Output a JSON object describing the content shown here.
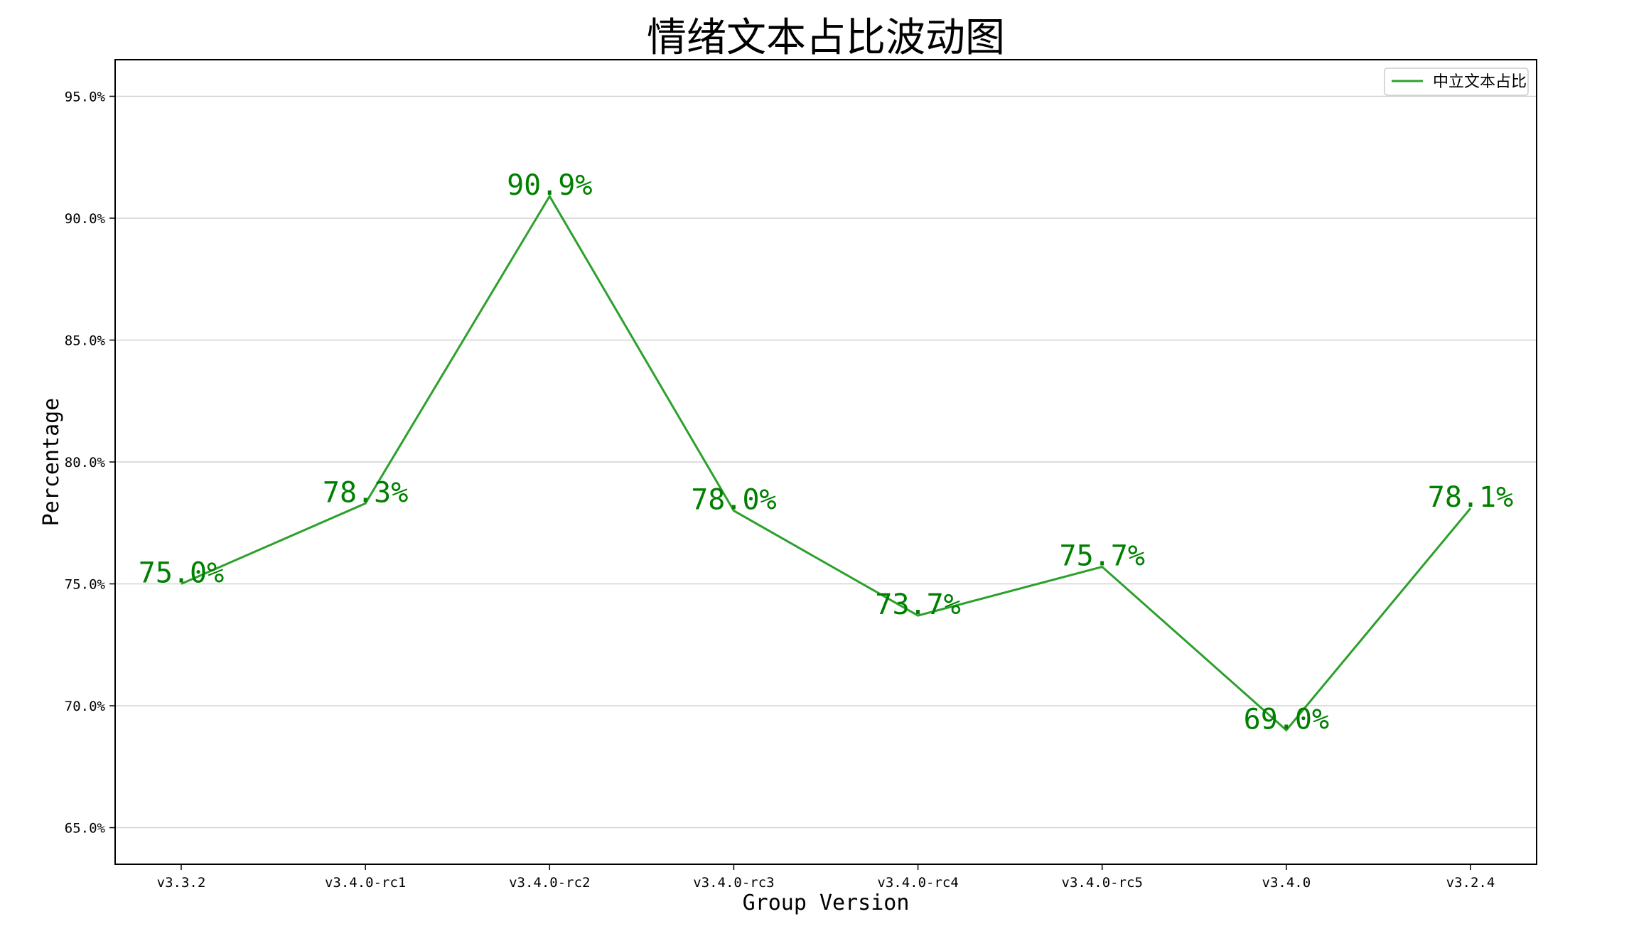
{
  "chart_data": {
    "type": "line",
    "title": "情绪文本占比波动图",
    "xlabel": "Group Version",
    "ylabel": "Percentage",
    "categories": [
      "v3.3.2",
      "v3.4.0-rc1",
      "v3.4.0-rc2",
      "v3.4.0-rc3",
      "v3.4.0-rc4",
      "v3.4.0-rc5",
      "v3.4.0",
      "v3.2.4"
    ],
    "series": [
      {
        "name": "中立文本占比",
        "values": [
          75.0,
          78.3,
          90.9,
          78.0,
          73.7,
          75.7,
          69.0,
          78.1
        ],
        "labels": [
          "75.0%",
          "78.3%",
          "90.9%",
          "78.0%",
          "73.7%",
          "75.7%",
          "69.0%",
          "78.1%"
        ],
        "color": "#2ca02c",
        "label_color": "#008000"
      }
    ],
    "ylim": [
      63.5,
      96.5
    ],
    "yticks": [
      65.0,
      70.0,
      75.0,
      80.0,
      85.0,
      90.0,
      95.0
    ],
    "ytick_labels": [
      "65.0%",
      "70.0%",
      "75.0%",
      "80.0%",
      "85.0%",
      "90.0%",
      "95.0%"
    ],
    "grid": "horizontal",
    "legend_position": "top-right"
  }
}
